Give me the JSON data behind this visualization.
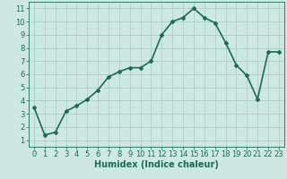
{
  "x": [
    0,
    1,
    2,
    3,
    4,
    5,
    6,
    7,
    8,
    9,
    10,
    11,
    12,
    13,
    14,
    15,
    16,
    17,
    18,
    19,
    20,
    21,
    22,
    23
  ],
  "y": [
    3.5,
    1.4,
    1.6,
    3.2,
    3.6,
    4.1,
    4.8,
    5.8,
    6.2,
    6.5,
    6.5,
    7.0,
    9.0,
    10.0,
    10.3,
    11.0,
    10.3,
    9.9,
    8.4,
    6.7,
    5.9,
    4.1,
    7.7,
    7.7
  ],
  "line_color": "#1a6b5a",
  "marker": "D",
  "marker_size": 2,
  "bg_color": "#cce8e0",
  "grid_color": "#aad0c8",
  "xlabel": "Humidex (Indice chaleur)",
  "xlabel_fontsize": 7,
  "xlim": [
    -0.5,
    23.5
  ],
  "ylim": [
    0.5,
    11.5
  ],
  "yticks": [
    1,
    2,
    3,
    4,
    5,
    6,
    7,
    8,
    9,
    10,
    11
  ],
  "xticks": [
    0,
    1,
    2,
    3,
    4,
    5,
    6,
    7,
    8,
    9,
    10,
    11,
    12,
    13,
    14,
    15,
    16,
    17,
    18,
    19,
    20,
    21,
    22,
    23
  ],
  "tick_fontsize": 6,
  "line_width": 1.2
}
